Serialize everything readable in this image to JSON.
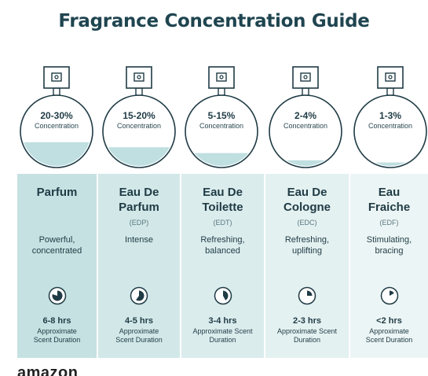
{
  "title": "Fragrance Concentration Guide",
  "colors": {
    "title": "#1f4550",
    "liquid": "#bfdfe0",
    "col_backgrounds": [
      "#c6e1e1",
      "#d2e8e8",
      "#dbeced",
      "#e4f1f1",
      "#ecf5f5"
    ]
  },
  "levels": [
    {
      "percent": "20-30%",
      "concentration_label": "Concentration",
      "fill_fraction": 0.35,
      "name": "Parfum",
      "abbr": "",
      "description": "Powerful, concentrated",
      "clock_fraction": 0.8,
      "hours": "6-8 hrs",
      "duration_label": "Approximate Scent Duration"
    },
    {
      "percent": "15-20%",
      "concentration_label": "Concentration",
      "fill_fraction": 0.28,
      "name": "Eau De Parfum",
      "abbr": "(EDP)",
      "description": "Intense",
      "clock_fraction": 0.6,
      "hours": "4-5 hrs",
      "duration_label": "Approximate Scent Duration"
    },
    {
      "percent": "5-15%",
      "concentration_label": "Concentration",
      "fill_fraction": 0.2,
      "name": "Eau De Toilette",
      "abbr": "(EDT)",
      "description": "Refreshing, balanced",
      "clock_fraction": 0.42,
      "hours": "3-4 hrs",
      "duration_label": "Approximate Scent Duration"
    },
    {
      "percent": "2-4%",
      "concentration_label": "Concentration",
      "fill_fraction": 0.1,
      "name": "Eau De Cologne",
      "abbr": "(EDC)",
      "description": "Refreshing, uplifting",
      "clock_fraction": 0.25,
      "hours": "2-3 hrs",
      "duration_label": "Approximate Scent Duration"
    },
    {
      "percent": "1-3%",
      "concentration_label": "Concentration",
      "fill_fraction": 0.07,
      "name": "Eau Fraiche",
      "abbr": "(EDF)",
      "description": "Stimulating, bracing",
      "clock_fraction": 0.17,
      "hours": "<2 hrs",
      "duration_label": "Approximate Scent Duration"
    }
  ],
  "logo_text": "amazon"
}
